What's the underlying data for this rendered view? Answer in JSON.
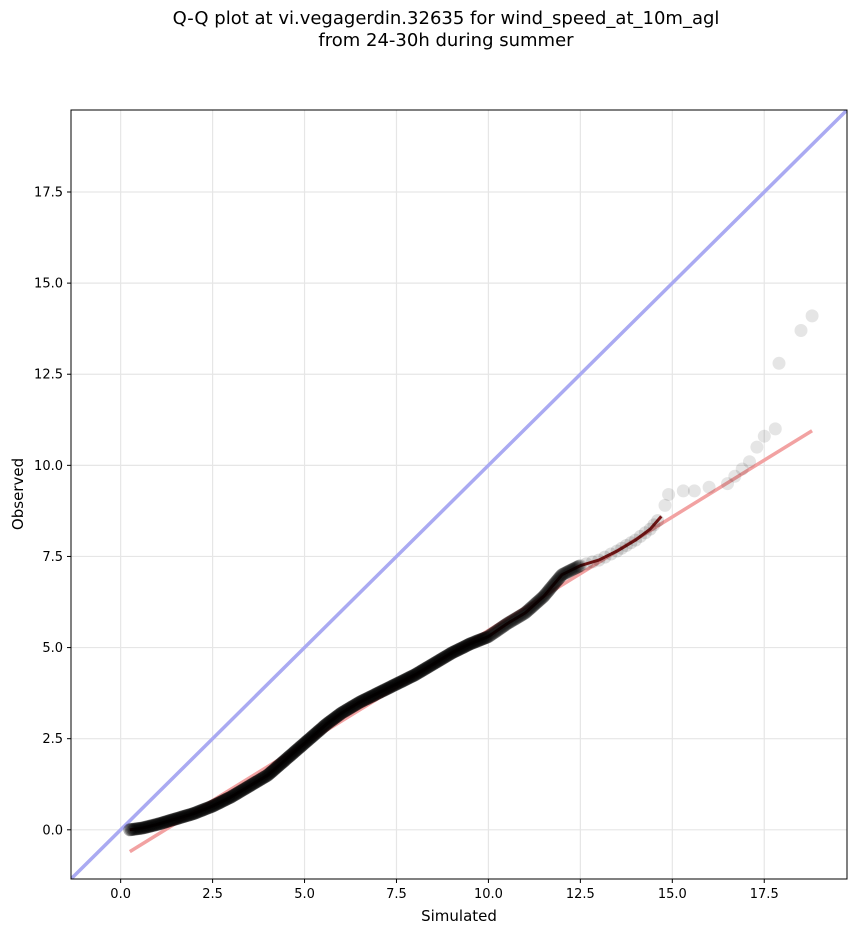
{
  "chart_data": {
    "type": "scatter",
    "title": "Q-Q plot at vi.vegagerdin.32635 for wind_speed_at_10m_agl",
    "subtitle": "from 24-30h during summer",
    "xlabel": "Simulated",
    "ylabel": "Observed",
    "xlim": [
      -1.35,
      19.75
    ],
    "ylim": [
      -1.35,
      19.75
    ],
    "x_ticks": [
      0.0,
      2.5,
      5.0,
      7.5,
      10.0,
      12.5,
      15.0,
      17.5
    ],
    "y_ticks": [
      0.0,
      2.5,
      5.0,
      7.5,
      10.0,
      12.5,
      15.0,
      17.5
    ],
    "x_tick_labels": [
      "0.0",
      "2.5",
      "5.0",
      "7.5",
      "10.0",
      "12.5",
      "15.0",
      "17.5"
    ],
    "y_tick_labels": [
      "0.0",
      "2.5",
      "5.0",
      "7.5",
      "10.0",
      "12.5",
      "15.0",
      "17.5"
    ],
    "grid": true,
    "reference_line": {
      "x": [
        -1.35,
        19.75
      ],
      "y": [
        -1.35,
        19.75
      ],
      "color": "#aaaaf2"
    },
    "fit_line": {
      "x": [
        0.25,
        18.8
      ],
      "y": [
        -0.6,
        10.95
      ],
      "color": "#f2a2a2"
    },
    "bulk_trend_color": "#8b1a1a",
    "point_color": "#000000",
    "qq_points": {
      "x": [
        0.25,
        0.6,
        1.0,
        1.5,
        2.0,
        2.5,
        3.0,
        3.5,
        4.0,
        4.4,
        4.8,
        5.2,
        5.6,
        6.0,
        6.5,
        7.0,
        7.5,
        8.0,
        8.5,
        9.0,
        9.5,
        10.0,
        10.5,
        11.0,
        11.5,
        12.0,
        12.5,
        13.0,
        13.5,
        14.0,
        14.4,
        14.7
      ],
      "y": [
        0.0,
        0.05,
        0.15,
        0.3,
        0.45,
        0.65,
        0.9,
        1.2,
        1.5,
        1.85,
        2.2,
        2.55,
        2.9,
        3.2,
        3.5,
        3.75,
        4.0,
        4.25,
        4.55,
        4.85,
        5.1,
        5.3,
        5.65,
        5.95,
        6.4,
        7.0,
        7.25,
        7.4,
        7.65,
        7.95,
        8.25,
        8.6
      ]
    },
    "tail_points": {
      "x": [
        14.8,
        14.9,
        15.3,
        15.6,
        16.0,
        16.5,
        16.7,
        16.9,
        17.1,
        17.3,
        17.5,
        17.8,
        17.9,
        18.5,
        18.8
      ],
      "y": [
        8.9,
        9.2,
        9.3,
        9.3,
        9.4,
        9.5,
        9.7,
        9.9,
        10.1,
        10.5,
        10.8,
        11.0,
        12.8,
        13.7,
        14.1
      ]
    }
  }
}
